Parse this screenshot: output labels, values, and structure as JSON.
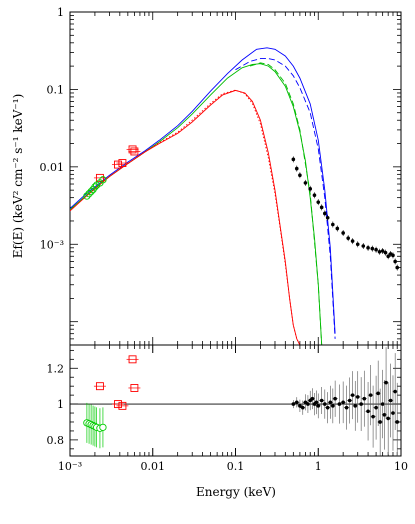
{
  "chart_data": [
    {
      "type": "line",
      "panel": "spectrum",
      "xscale": "log",
      "yscale": "log",
      "xlim": [
        0.001,
        10
      ],
      "ylim": [
        5e-05,
        1
      ],
      "xlabel": "",
      "ylabel": "Ef(E) (keV² cm⁻² s⁻¹ keV⁻¹)",
      "yticks": [
        {
          "value": 1,
          "label": "1"
        },
        {
          "value": 0.1,
          "label": "0.1"
        },
        {
          "value": 0.01,
          "label": "0.01"
        },
        {
          "value": 0.001,
          "label": "10⁻³"
        }
      ],
      "colors": {
        "total": "#0000ff",
        "total_dashed": "#0000ff",
        "mid": "#00bb00",
        "mid_dashed": "#00bb00",
        "low": "#ff0000",
        "low_dotted": "#ff0000",
        "xray_data": "#000000",
        "optical_data": "#ff0000",
        "uv_data": "#00cc00"
      },
      "series": [
        {
          "key": "total",
          "style": "solid",
          "color": "#0000ff",
          "x": [
            0.001,
            0.0015,
            0.002,
            0.003,
            0.005,
            0.008,
            0.012,
            0.02,
            0.03,
            0.05,
            0.08,
            0.12,
            0.18,
            0.24,
            0.3,
            0.4,
            0.5,
            0.6,
            0.8,
            1.0,
            1.2,
            1.4,
            1.6
          ],
          "y": [
            0.0029,
            0.0043,
            0.0055,
            0.0078,
            0.0115,
            0.016,
            0.022,
            0.034,
            0.052,
            0.095,
            0.16,
            0.24,
            0.33,
            0.345,
            0.33,
            0.27,
            0.2,
            0.14,
            0.065,
            0.022,
            0.005,
            0.0009,
            7e-05
          ]
        },
        {
          "key": "total_dashed",
          "style": "dashed",
          "color": "#0000ff",
          "x": [
            0.1,
            0.15,
            0.2,
            0.25,
            0.3,
            0.4,
            0.5,
            0.6,
            0.8,
            1.0,
            1.2,
            1.4,
            1.6
          ],
          "y": [
            0.18,
            0.23,
            0.25,
            0.25,
            0.24,
            0.2,
            0.15,
            0.105,
            0.05,
            0.017,
            0.004,
            0.0007,
            6e-05
          ]
        },
        {
          "key": "mid",
          "style": "solid",
          "color": "#00bb00",
          "x": [
            0.001,
            0.0015,
            0.002,
            0.003,
            0.005,
            0.008,
            0.012,
            0.02,
            0.03,
            0.05,
            0.08,
            0.12,
            0.16,
            0.2,
            0.25,
            0.3,
            0.4,
            0.5,
            0.6,
            0.7,
            0.8,
            0.9,
            1.0,
            1.1
          ],
          "y": [
            0.0028,
            0.0041,
            0.0053,
            0.0075,
            0.011,
            0.0155,
            0.021,
            0.032,
            0.048,
            0.085,
            0.14,
            0.19,
            0.21,
            0.215,
            0.2,
            0.17,
            0.11,
            0.06,
            0.028,
            0.012,
            0.004,
            0.0012,
            0.0003,
            5e-05
          ]
        },
        {
          "key": "mid_dashed",
          "style": "dashed",
          "color": "#00bb00",
          "x": [
            0.15,
            0.2,
            0.25,
            0.3,
            0.4,
            0.5,
            0.6,
            0.8,
            1.0,
            1.1
          ],
          "y": [
            0.2,
            0.22,
            0.21,
            0.18,
            0.12,
            0.065,
            0.03,
            0.0045,
            0.0003,
            5e-05
          ]
        },
        {
          "key": "low",
          "style": "solid",
          "color": "#ff0000",
          "x": [
            0.001,
            0.0015,
            0.002,
            0.003,
            0.005,
            0.008,
            0.012,
            0.02,
            0.03,
            0.05,
            0.07,
            0.1,
            0.13,
            0.16,
            0.2,
            0.25,
            0.3,
            0.35,
            0.4,
            0.45,
            0.5,
            0.55,
            0.6
          ],
          "y": [
            0.0027,
            0.004,
            0.0052,
            0.0075,
            0.011,
            0.0155,
            0.02,
            0.027,
            0.038,
            0.063,
            0.085,
            0.097,
            0.09,
            0.07,
            0.04,
            0.015,
            0.005,
            0.0016,
            0.0006,
            0.0002,
            9e-05,
            6e-05,
            5e-05
          ]
        },
        {
          "key": "low_dotted",
          "style": "dotted",
          "color": "#ff0000",
          "x": [
            0.005,
            0.008,
            0.012,
            0.02,
            0.03,
            0.05,
            0.07,
            0.1,
            0.13,
            0.16,
            0.2,
            0.25,
            0.3,
            0.35,
            0.4,
            0.45,
            0.5,
            0.55,
            0.6
          ],
          "y": [
            0.011,
            0.0155,
            0.0205,
            0.028,
            0.04,
            0.066,
            0.088,
            0.098,
            0.088,
            0.066,
            0.036,
            0.013,
            0.0045,
            0.0015,
            0.00055,
            0.0002,
            9e-05,
            6e-05,
            5e-05
          ]
        }
      ],
      "data_points": {
        "xray": {
          "color": "#000000",
          "x": [
            0.5,
            0.55,
            0.6,
            0.7,
            0.8,
            0.9,
            1.0,
            1.1,
            1.2,
            1.3,
            1.5,
            1.7,
            2.0,
            2.3,
            2.6,
            3.0,
            3.5,
            4.0,
            4.5,
            5.0,
            5.5,
            6.0,
            6.5,
            7.0,
            7.5,
            8.0,
            8.5,
            9.0
          ],
          "y": [
            0.0125,
            0.0095,
            0.0078,
            0.0062,
            0.0052,
            0.0043,
            0.0035,
            0.003,
            0.0025,
            0.0022,
            0.0018,
            0.0016,
            0.0014,
            0.0012,
            0.0011,
            0.001,
            0.00095,
            0.0009,
            0.00088,
            0.00085,
            0.0008,
            0.00082,
            0.00078,
            0.0007,
            0.00075,
            0.00072,
            0.0006,
            0.0005
          ]
        },
        "optical": {
          "color": "#ff0000",
          "x": [
            0.0023,
            0.0038,
            0.0043,
            0.0057,
            0.006
          ],
          "y": [
            0.0072,
            0.0107,
            0.0112,
            0.0168,
            0.0158
          ]
        },
        "uv": {
          "color": "#00cc00",
          "x": [
            0.0016,
            0.0017,
            0.0018,
            0.0019,
            0.002,
            0.0021,
            0.0023,
            0.0025
          ],
          "y": [
            0.0042,
            0.0045,
            0.0048,
            0.0051,
            0.0055,
            0.0058,
            0.0062,
            0.0068
          ]
        }
      }
    },
    {
      "type": "scatter",
      "panel": "ratio",
      "xscale": "log",
      "xlim": [
        0.001,
        10
      ],
      "ylim": [
        0.71,
        1.33
      ],
      "xlabel": "Energy (keV)",
      "ylabel": "",
      "xticks": [
        {
          "value": 0.001,
          "label": "10⁻³"
        },
        {
          "value": 0.01,
          "label": "0.01"
        },
        {
          "value": 0.1,
          "label": "0.1"
        },
        {
          "value": 1,
          "label": "1"
        },
        {
          "value": 10,
          "label": "10"
        }
      ],
      "yticks": [
        {
          "value": 1.2,
          "label": "1.2"
        },
        {
          "value": 1.0,
          "label": "1"
        },
        {
          "value": 0.8,
          "label": "0.8"
        }
      ],
      "reference_line": 1.0,
      "optical": {
        "color": "#ff0000",
        "x": [
          0.0023,
          0.0038,
          0.0043,
          0.0057,
          0.006
        ],
        "y": [
          1.1,
          1.0,
          0.99,
          1.25,
          1.09
        ]
      },
      "uv": {
        "color": "#00cc00",
        "x": [
          0.0016,
          0.0017,
          0.0018,
          0.0019,
          0.002,
          0.0021,
          0.0023,
          0.0025
        ],
        "y": [
          0.895,
          0.89,
          0.885,
          0.88,
          0.875,
          0.87,
          0.865,
          0.87
        ]
      },
      "xray": {
        "color": "#000000",
        "x": [
          0.5,
          0.55,
          0.6,
          0.65,
          0.7,
          0.75,
          0.8,
          0.85,
          0.9,
          0.95,
          1.0,
          1.1,
          1.2,
          1.3,
          1.4,
          1.5,
          1.6,
          1.8,
          2.0,
          2.2,
          2.4,
          2.6,
          2.8,
          3.0,
          3.3,
          3.6,
          4.0,
          4.3,
          4.6,
          5.0,
          5.3,
          5.6,
          6.0,
          6.3,
          6.6,
          7.0,
          7.5,
          8.0,
          8.5,
          9.0
        ],
        "y": [
          1.0,
          1.01,
          0.99,
          0.98,
          1.01,
          1.0,
          1.02,
          1.03,
          1.0,
          1.01,
          0.99,
          1.02,
          1.0,
          0.98,
          1.01,
          0.99,
          1.03,
          1.0,
          1.01,
          0.98,
          1.02,
          1.05,
          0.99,
          1.04,
          1.0,
          1.03,
          0.96,
          1.05,
          0.93,
          0.98,
          1.06,
          0.9,
          1.0,
          0.94,
          1.12,
          0.92,
          1.02,
          0.95,
          1.07,
          0.9
        ]
      }
    }
  ]
}
